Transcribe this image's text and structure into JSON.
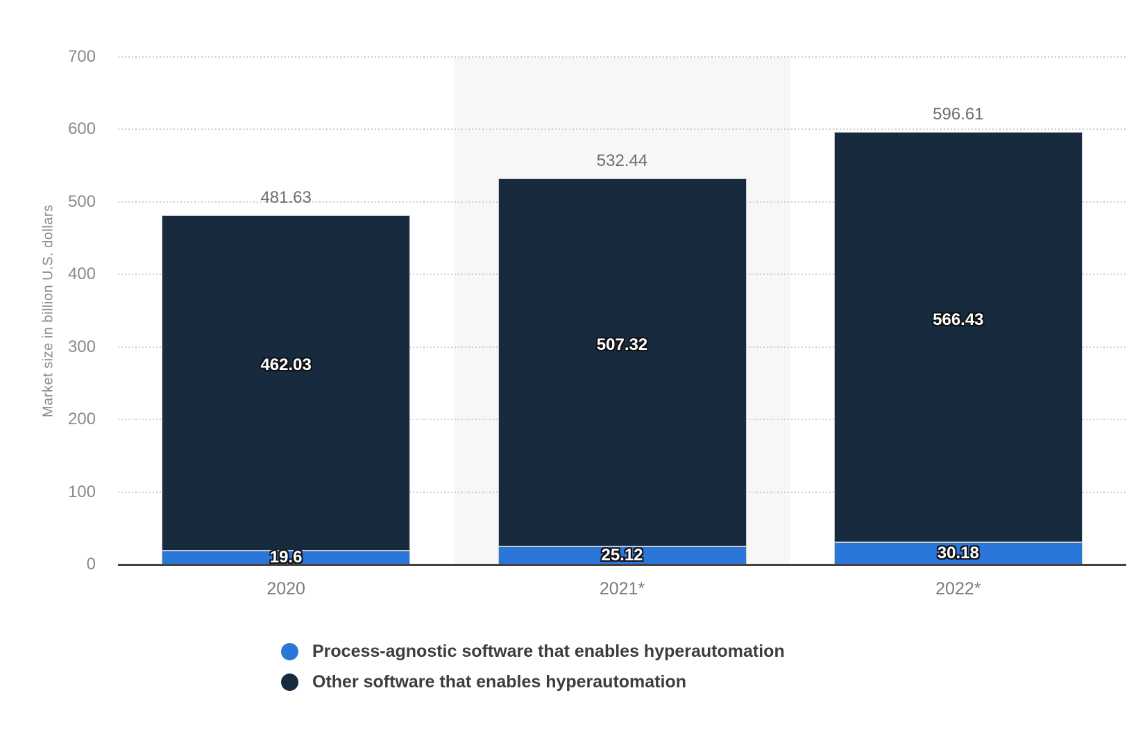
{
  "chart_data": {
    "type": "bar",
    "stacked": true,
    "categories": [
      "2020",
      "2021*",
      "2022*"
    ],
    "series": [
      {
        "name": "Process-agnostic software that enables hyperautomation",
        "color": "#2b76d9",
        "values": [
          19.6,
          25.12,
          30.18
        ],
        "value_labels": [
          "19.6",
          "25.12",
          "30.18"
        ]
      },
      {
        "name": "Other software that enables hyperautomation",
        "color": "#172a3e",
        "values": [
          462.03,
          507.32,
          566.43
        ],
        "value_labels": [
          "462.03",
          "507.32",
          "566.43"
        ]
      }
    ],
    "totals": [
      481.63,
      532.44,
      596.61
    ],
    "total_labels": [
      "481.63",
      "532.44",
      "596.61"
    ],
    "title": "",
    "xlabel": "",
    "ylabel": "Market size in billion U.S. dollars",
    "ylim": [
      0,
      700
    ],
    "yticks": [
      0,
      100,
      200,
      300,
      400,
      500,
      600,
      700
    ],
    "grid": "horizontal-dotted",
    "legend_position": "bottom-left",
    "highlighted_category": "2021*",
    "highlighted_category_index": 1,
    "colors": {
      "highlight_band": "#f7f7f7",
      "gridline": "#cdcdcd",
      "axis_line": "#424242",
      "tick_label": "#8a8a8a",
      "total_label": "#6d6d6d",
      "bar_value_label": "#ffffff",
      "legend_text": "#3d3d3d"
    }
  }
}
